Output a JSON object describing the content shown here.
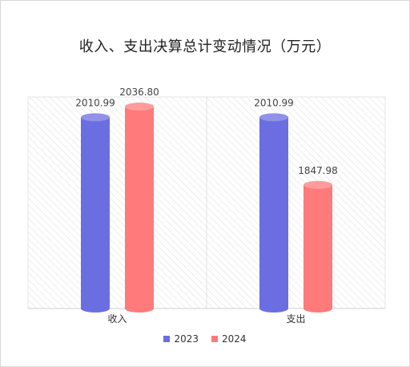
{
  "chart_data": {
    "type": "bar",
    "title": "收入、支出决算总计变动情况（万元）",
    "categories": [
      "收入",
      "支出"
    ],
    "series": [
      {
        "name": "2023",
        "values": [
          2010.99,
          2010.99
        ],
        "labels": [
          "2010.99",
          "2010.99"
        ],
        "color": "#6b6ee0"
      },
      {
        "name": "2024",
        "values": [
          2036.8,
          1847.98
        ],
        "labels": [
          "2036.80",
          "1847.98"
        ],
        "color": "#ff7a7a"
      }
    ],
    "ylim": [
      1550,
      2060
    ],
    "grid": false,
    "legend_position": "bottom"
  }
}
